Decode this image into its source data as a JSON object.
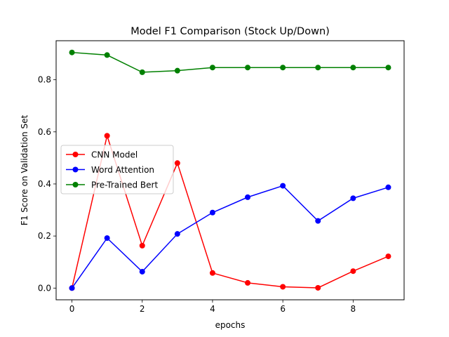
{
  "chart_data": {
    "type": "line",
    "title": "Model F1 Comparison (Stock Up/Down)",
    "xlabel": "epochs",
    "ylabel": "F1 Score on Validation Set",
    "xlim": [
      -0.45,
      9.45
    ],
    "ylim": [
      -0.045,
      0.95
    ],
    "xticks": [
      0,
      2,
      4,
      6,
      8
    ],
    "yticks": [
      0.0,
      0.2,
      0.4,
      0.6,
      0.8
    ],
    "xtick_labels": [
      "0",
      "2",
      "4",
      "6",
      "8"
    ],
    "ytick_labels": [
      "0.0",
      "0.2",
      "0.4",
      "0.6",
      "0.8"
    ],
    "grid": false,
    "legend_position": "center-left",
    "x": [
      0,
      1,
      2,
      3,
      4,
      5,
      6,
      7,
      8,
      9
    ],
    "series": [
      {
        "name": "CNN Model",
        "color": "#ff0000",
        "values": [
          0.0,
          0.585,
          0.163,
          0.48,
          0.058,
          0.02,
          0.005,
          0.001,
          0.065,
          0.122
        ]
      },
      {
        "name": "Word Attention",
        "color": "#0000ff",
        "values": [
          0.0,
          0.192,
          0.063,
          0.208,
          0.29,
          0.349,
          0.393,
          0.258,
          0.345,
          0.387
        ]
      },
      {
        "name": "Pre-Trained Bert",
        "color": "#008000",
        "values": [
          0.905,
          0.895,
          0.829,
          0.835,
          0.847,
          0.847,
          0.847,
          0.847,
          0.847,
          0.847
        ]
      }
    ]
  }
}
